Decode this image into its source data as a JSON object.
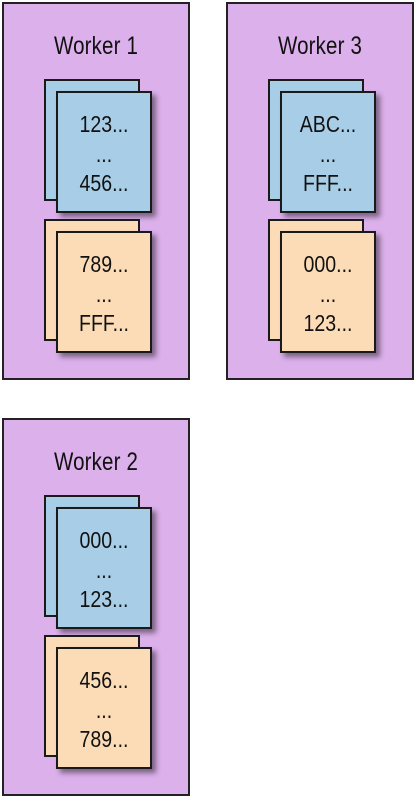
{
  "workers": {
    "w1": {
      "title": "Worker 1",
      "partitions": [
        {
          "start": "123...",
          "mid": "...",
          "end": "456..."
        },
        {
          "start": "789...",
          "mid": "...",
          "end": "FFF..."
        }
      ]
    },
    "w3": {
      "title": "Worker 3",
      "partitions": [
        {
          "start": "ABC...",
          "mid": "...",
          "end": "FFF..."
        },
        {
          "start": "000...",
          "mid": "...",
          "end": "123..."
        }
      ]
    },
    "w2": {
      "title": "Worker 2",
      "partitions": [
        {
          "start": "000...",
          "mid": "...",
          "end": "123..."
        },
        {
          "start": "456...",
          "mid": "...",
          "end": "789..."
        }
      ]
    }
  },
  "colors": {
    "worker_bg": "#dcb0eb",
    "partition_blue": "#a8cde6",
    "partition_tan": "#fbdcb7"
  }
}
